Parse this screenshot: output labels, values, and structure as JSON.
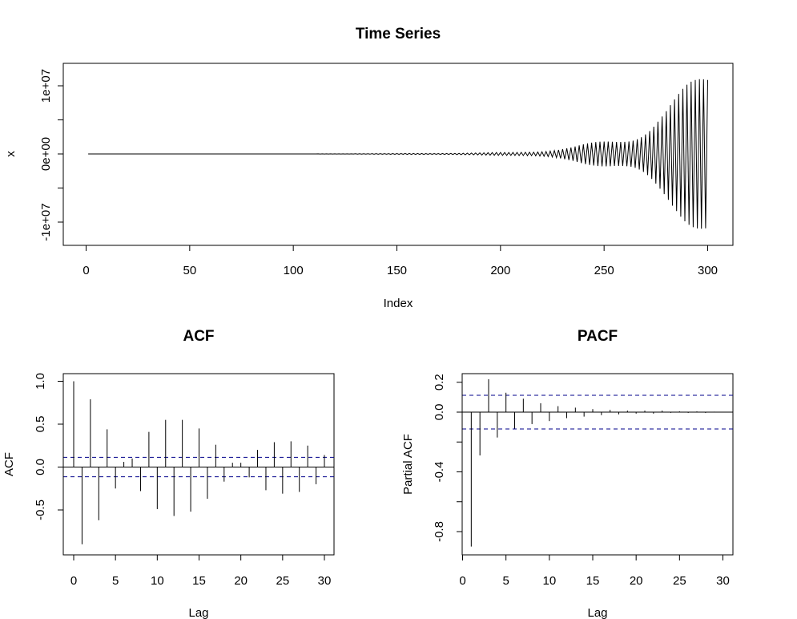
{
  "chart_data": [
    {
      "type": "line",
      "title": "Time Series",
      "xlabel": "Index",
      "ylabel": "x",
      "xlim": [
        0,
        300
      ],
      "ylim": [
        -12000000,
        12000000
      ],
      "x_ticks": [
        0,
        50,
        100,
        150,
        200,
        250,
        300
      ],
      "x_tick_labels": [
        "0",
        "50",
        "100",
        "150",
        "200",
        "250",
        "300"
      ],
      "y_ticks": [
        -10000000,
        0,
        10000000
      ],
      "y_tick_labels": [
        "-1e+07",
        "0e+00",
        "1e+07"
      ],
      "series": [
        {
          "oscillating_envelope": [
            [
              1,
              0
            ],
            [
              110,
              0
            ],
            [
              115,
              20000
            ],
            [
              130,
              30000
            ],
            [
              150,
              50000
            ],
            [
              170,
              80000
            ],
            [
              190,
              120000
            ],
            [
              205,
              200000
            ],
            [
              215,
              350000
            ],
            [
              225,
              600000
            ],
            [
              235,
              1000000
            ],
            [
              245,
              1700000
            ],
            [
              255,
              2600000
            ],
            [
              265,
              3800000
            ],
            [
              272,
              4800000
            ],
            [
              280,
              6300000
            ],
            [
              285,
              7500000
            ],
            [
              290,
              9000000
            ],
            [
              295,
              10500000
            ],
            [
              300,
              12000000
            ]
          ]
        }
      ],
      "grid": false,
      "line_color": "#000000"
    },
    {
      "type": "bar",
      "title": "ACF",
      "xlabel": "Lag",
      "ylabel": "ACF",
      "xlim": [
        0,
        30
      ],
      "ylim": [
        -0.95,
        1.05
      ],
      "x_ticks": [
        0,
        5,
        10,
        15,
        20,
        25,
        30
      ],
      "x_tick_labels": [
        "0",
        "5",
        "10",
        "15",
        "20",
        "25",
        "30"
      ],
      "y_ticks": [
        -0.5,
        0,
        0.5,
        1
      ],
      "y_tick_labels": [
        "-0.5",
        "0.0",
        "0.5",
        "1.0"
      ],
      "lags": [
        0,
        1,
        2,
        3,
        4,
        5,
        6,
        7,
        8,
        9,
        10,
        11,
        12,
        13,
        14,
        15,
        16,
        17,
        18,
        19,
        20,
        21,
        22,
        23,
        24,
        25,
        26,
        27,
        28,
        29,
        30
      ],
      "values": [
        1.0,
        -0.9,
        0.79,
        -0.62,
        0.44,
        -0.25,
        0.06,
        0.1,
        -0.28,
        0.41,
        -0.49,
        0.55,
        -0.57,
        0.55,
        -0.52,
        0.45,
        -0.37,
        0.26,
        -0.17,
        0.05,
        0.05,
        -0.12,
        0.2,
        -0.27,
        0.29,
        -0.31,
        0.3,
        -0.29,
        0.25,
        -0.2,
        0.14
      ],
      "confidence_bounds": [
        -0.113,
        0.113
      ],
      "bound_color": "#00008b"
    },
    {
      "type": "bar",
      "title": "PACF",
      "xlabel": "Lag",
      "ylabel": "Partial ACF",
      "xlim": [
        1,
        30
      ],
      "ylim": [
        -0.95,
        0.26
      ],
      "x_ticks": [
        0,
        5,
        10,
        15,
        20,
        25,
        30
      ],
      "x_tick_labels": [
        "0",
        "5",
        "10",
        "15",
        "20",
        "25",
        "30"
      ],
      "y_ticks": [
        -0.8,
        -0.4,
        0,
        0.2
      ],
      "y_tick_labels": [
        "-0.8",
        "-0.4",
        "0.0",
        "0.2"
      ],
      "lags": [
        1,
        2,
        3,
        4,
        5,
        6,
        7,
        8,
        9,
        10,
        11,
        12,
        13,
        14,
        15,
        16,
        17,
        18,
        19,
        20,
        21,
        22,
        23,
        24,
        25,
        26,
        27,
        28,
        29,
        30
      ],
      "values": [
        -0.9,
        -0.29,
        0.22,
        -0.17,
        0.13,
        -0.11,
        0.09,
        -0.08,
        0.06,
        -0.06,
        0.04,
        -0.04,
        0.03,
        -0.03,
        0.02,
        -0.02,
        0.015,
        -0.015,
        0.01,
        -0.01,
        0.01,
        -0.01,
        0.01,
        -0.005,
        0.005,
        -0.005,
        0.005,
        -0.005,
        0.003,
        -0.003
      ],
      "confidence_bounds": [
        -0.113,
        0.113
      ],
      "bound_color": "#00008b"
    }
  ]
}
